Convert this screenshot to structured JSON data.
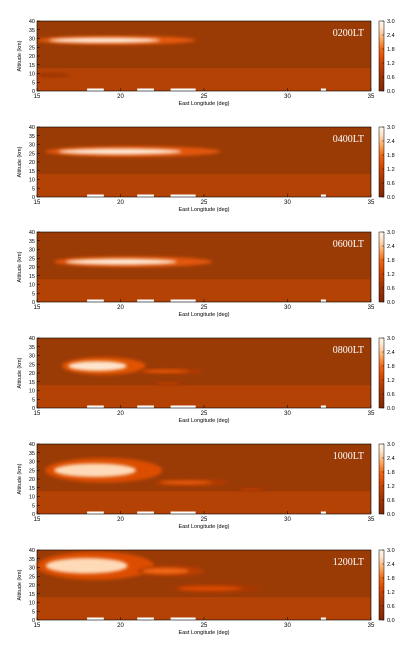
{
  "chart_data": [
    {
      "type": "heatmap",
      "time_label": "0200LT",
      "xlabel": "East Longitude (deg)",
      "ylabel": "Altitude (km)",
      "xlim": [
        15,
        35
      ],
      "ylim": [
        0,
        40
      ],
      "x_ticks": [
        "15",
        "20",
        "25",
        "30",
        "35"
      ],
      "y_ticks": [
        "0",
        "5",
        "10",
        "15",
        "20",
        "25",
        "30",
        "35",
        "40"
      ],
      "colorbar_ticks": [
        "0.0",
        "0.6",
        "1.2",
        "1.8",
        "2.4",
        "3.0"
      ],
      "colorbar_range": [
        0,
        3.0
      ],
      "plumes": [
        {
          "x0": 15,
          "x1": 24.5,
          "yc": 29,
          "h": 5,
          "v": 2.9
        },
        {
          "x0": 15,
          "x1": 17,
          "yc": 9,
          "h": 2,
          "v": 0.8
        }
      ]
    },
    {
      "type": "heatmap",
      "time_label": "0400LT",
      "xlabel": "East Longitude (deg)",
      "ylabel": "Altitude (km)",
      "xlim": [
        15,
        35
      ],
      "ylim": [
        0,
        40
      ],
      "x_ticks": [
        "15",
        "20",
        "25",
        "30",
        "35"
      ],
      "y_ticks": [
        "0",
        "5",
        "10",
        "15",
        "20",
        "25",
        "30",
        "35",
        "40"
      ],
      "colorbar_ticks": [
        "0.0",
        "0.6",
        "1.2",
        "1.8",
        "2.4",
        "3.0"
      ],
      "colorbar_range": [
        0,
        3.0
      ],
      "plumes": [
        {
          "x0": 15.5,
          "x1": 26,
          "yc": 26,
          "h": 6,
          "v": 2.8
        }
      ]
    },
    {
      "type": "heatmap",
      "time_label": "0600LT",
      "xlabel": "East Longitude (deg)",
      "ylabel": "Altitude (km)",
      "xlim": [
        15,
        35
      ],
      "ylim": [
        0,
        40
      ],
      "x_ticks": [
        "15",
        "20",
        "25",
        "30",
        "35"
      ],
      "y_ticks": [
        "0",
        "5",
        "10",
        "15",
        "20",
        "25",
        "30",
        "35",
        "40"
      ],
      "colorbar_ticks": [
        "0.0",
        "0.6",
        "1.2",
        "1.8",
        "2.4",
        "3.0"
      ],
      "colorbar_range": [
        0,
        3.0
      ],
      "plumes": [
        {
          "x0": 16,
          "x1": 25.5,
          "yc": 23,
          "h": 6,
          "v": 2.8
        }
      ]
    },
    {
      "type": "heatmap",
      "time_label": "0800LT",
      "xlabel": "East Longitude (deg)",
      "ylabel": "Altitude (km)",
      "xlim": [
        15,
        35
      ],
      "ylim": [
        0,
        40
      ],
      "x_ticks": [
        "15",
        "20",
        "25",
        "30",
        "35"
      ],
      "y_ticks": [
        "0",
        "5",
        "10",
        "15",
        "20",
        "25",
        "30",
        "35",
        "40"
      ],
      "colorbar_ticks": [
        "0.0",
        "0.6",
        "1.2",
        "1.8",
        "2.4",
        "3.0"
      ],
      "colorbar_range": [
        0,
        3.0
      ],
      "plumes": [
        {
          "x0": 16.5,
          "x1": 21.5,
          "yc": 24,
          "h": 10,
          "v": 2.7
        },
        {
          "x0": 21,
          "x1": 25,
          "yc": 21,
          "h": 3,
          "v": 1.6
        },
        {
          "x0": 22,
          "x1": 24,
          "yc": 14,
          "h": 2,
          "v": 1.2
        }
      ]
    },
    {
      "type": "heatmap",
      "time_label": "1000LT",
      "xlabel": "East Longitude (deg)",
      "ylabel": "Altitude (km)",
      "xlim": [
        15,
        35
      ],
      "ylim": [
        0,
        40
      ],
      "x_ticks": [
        "15",
        "20",
        "25",
        "30",
        "35"
      ],
      "y_ticks": [
        "0",
        "5",
        "10",
        "15",
        "20",
        "25",
        "30",
        "35",
        "40"
      ],
      "colorbar_ticks": [
        "0.0",
        "0.6",
        "1.2",
        "1.8",
        "2.4",
        "3.0"
      ],
      "colorbar_range": [
        0,
        3.0
      ],
      "plumes": [
        {
          "x0": 15.5,
          "x1": 22.5,
          "yc": 25,
          "h": 14,
          "v": 2.6
        },
        {
          "x0": 22,
          "x1": 26.5,
          "yc": 18,
          "h": 4,
          "v": 1.6
        },
        {
          "x0": 27,
          "x1": 29,
          "yc": 14,
          "h": 2,
          "v": 1.2
        }
      ]
    },
    {
      "type": "heatmap",
      "time_label": "1200LT",
      "xlabel": "East Longitude (deg)",
      "ylabel": "Altitude (km)",
      "xlim": [
        15,
        35
      ],
      "ylim": [
        0,
        40
      ],
      "x_ticks": [
        "15",
        "20",
        "25",
        "30",
        "35"
      ],
      "y_ticks": [
        "0",
        "5",
        "10",
        "15",
        "20",
        "25",
        "30",
        "35",
        "40"
      ],
      "colorbar_ticks": [
        "0.0",
        "0.6",
        "1.2",
        "1.8",
        "2.4",
        "3.0"
      ],
      "colorbar_range": [
        0,
        3.0
      ],
      "plumes": [
        {
          "x0": 15,
          "x1": 22,
          "yc": 31,
          "h": 16,
          "v": 2.6
        },
        {
          "x0": 21,
          "x1": 25,
          "yc": 28,
          "h": 6,
          "v": 1.8
        },
        {
          "x0": 23,
          "x1": 28.5,
          "yc": 18,
          "h": 5,
          "v": 1.4
        }
      ]
    }
  ]
}
